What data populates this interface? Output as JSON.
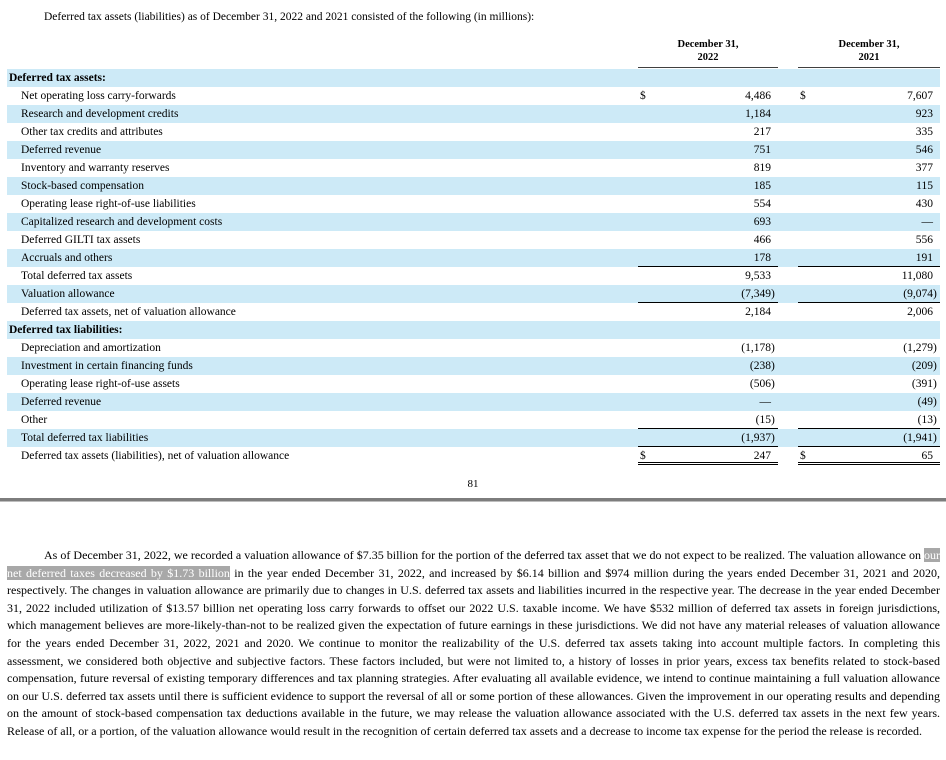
{
  "document": {
    "intro": "Deferred tax assets (liabilities) as of December 31, 2022 and 2021 consisted of the following (in millions):",
    "page_number": "81"
  },
  "colors": {
    "row_shade": "#cdeaf7",
    "highlight_bg": "#a8a8a8",
    "highlight_text": "#ffffff",
    "divider": "#7d7d7d"
  },
  "table": {
    "columns": [
      {
        "line1": "December 31,",
        "line2": "2022"
      },
      {
        "line1": "December 31,",
        "line2": "2021"
      }
    ],
    "rows": [
      {
        "label": "Deferred tax assets:",
        "section": true,
        "shade": true,
        "underline": "none",
        "cells": null
      },
      {
        "label": "Net operating loss carry-forwards",
        "section": false,
        "shade": false,
        "underline": "none",
        "cells": [
          {
            "dollar": "$",
            "num": "4,486",
            "paren": ""
          },
          {
            "dollar": "$",
            "num": "7,607",
            "paren": ""
          }
        ]
      },
      {
        "label": "Research and development credits",
        "section": false,
        "shade": true,
        "underline": "none",
        "cells": [
          {
            "dollar": "",
            "num": "1,184",
            "paren": ""
          },
          {
            "dollar": "",
            "num": "923",
            "paren": ""
          }
        ]
      },
      {
        "label": "Other tax credits and attributes",
        "section": false,
        "shade": false,
        "underline": "none",
        "cells": [
          {
            "dollar": "",
            "num": "217",
            "paren": ""
          },
          {
            "dollar": "",
            "num": "335",
            "paren": ""
          }
        ]
      },
      {
        "label": "Deferred revenue",
        "section": false,
        "shade": true,
        "underline": "none",
        "cells": [
          {
            "dollar": "",
            "num": "751",
            "paren": ""
          },
          {
            "dollar": "",
            "num": "546",
            "paren": ""
          }
        ]
      },
      {
        "label": "Inventory and warranty reserves",
        "section": false,
        "shade": false,
        "underline": "none",
        "cells": [
          {
            "dollar": "",
            "num": "819",
            "paren": ""
          },
          {
            "dollar": "",
            "num": "377",
            "paren": ""
          }
        ]
      },
      {
        "label": "Stock-based compensation",
        "section": false,
        "shade": true,
        "underline": "none",
        "cells": [
          {
            "dollar": "",
            "num": "185",
            "paren": ""
          },
          {
            "dollar": "",
            "num": "115",
            "paren": ""
          }
        ]
      },
      {
        "label": "Operating lease right-of-use liabilities",
        "section": false,
        "shade": false,
        "underline": "none",
        "cells": [
          {
            "dollar": "",
            "num": "554",
            "paren": ""
          },
          {
            "dollar": "",
            "num": "430",
            "paren": ""
          }
        ]
      },
      {
        "label": "Capitalized research and development costs",
        "section": false,
        "shade": true,
        "underline": "none",
        "cells": [
          {
            "dollar": "",
            "num": "693",
            "paren": ""
          },
          {
            "dollar": "",
            "num": "—",
            "paren": ""
          }
        ]
      },
      {
        "label": "Deferred GILTI tax assets",
        "section": false,
        "shade": false,
        "underline": "none",
        "cells": [
          {
            "dollar": "",
            "num": "466",
            "paren": ""
          },
          {
            "dollar": "",
            "num": "556",
            "paren": ""
          }
        ]
      },
      {
        "label": "Accruals and others",
        "section": false,
        "shade": true,
        "underline": "single",
        "cells": [
          {
            "dollar": "",
            "num": "178",
            "paren": ""
          },
          {
            "dollar": "",
            "num": "191",
            "paren": ""
          }
        ]
      },
      {
        "label": "Total deferred tax assets",
        "section": false,
        "shade": false,
        "underline": "none",
        "cells": [
          {
            "dollar": "",
            "num": "9,533",
            "paren": ""
          },
          {
            "dollar": "",
            "num": "11,080",
            "paren": ""
          }
        ]
      },
      {
        "label": "Valuation allowance",
        "section": false,
        "shade": true,
        "underline": "single",
        "cells": [
          {
            "dollar": "",
            "num": "(7,349",
            "paren": ")"
          },
          {
            "dollar": "",
            "num": "(9,074",
            "paren": ")"
          }
        ]
      },
      {
        "label": "Deferred tax assets, net of valuation allowance",
        "section": false,
        "shade": false,
        "underline": "none",
        "cells": [
          {
            "dollar": "",
            "num": "2,184",
            "paren": ""
          },
          {
            "dollar": "",
            "num": "2,006",
            "paren": ""
          }
        ]
      },
      {
        "label": "Deferred tax liabilities:",
        "section": true,
        "shade": true,
        "underline": "none",
        "cells": null
      },
      {
        "label": "Depreciation and amortization",
        "section": false,
        "shade": false,
        "underline": "none",
        "cells": [
          {
            "dollar": "",
            "num": "(1,178",
            "paren": ")"
          },
          {
            "dollar": "",
            "num": "(1,279",
            "paren": ")"
          }
        ]
      },
      {
        "label": "Investment in certain financing funds",
        "section": false,
        "shade": true,
        "underline": "none",
        "cells": [
          {
            "dollar": "",
            "num": "(238",
            "paren": ")"
          },
          {
            "dollar": "",
            "num": "(209",
            "paren": ")"
          }
        ]
      },
      {
        "label": "Operating lease right-of-use assets",
        "section": false,
        "shade": false,
        "underline": "none",
        "cells": [
          {
            "dollar": "",
            "num": "(506",
            "paren": ")"
          },
          {
            "dollar": "",
            "num": "(391",
            "paren": ")"
          }
        ]
      },
      {
        "label": "Deferred revenue",
        "section": false,
        "shade": true,
        "underline": "none",
        "cells": [
          {
            "dollar": "",
            "num": "—",
            "paren": ""
          },
          {
            "dollar": "",
            "num": "(49",
            "paren": ")"
          }
        ]
      },
      {
        "label": "Other",
        "section": false,
        "shade": false,
        "underline": "single",
        "cells": [
          {
            "dollar": "",
            "num": "(15",
            "paren": ")"
          },
          {
            "dollar": "",
            "num": "(13",
            "paren": ")"
          }
        ]
      },
      {
        "label": "Total deferred tax liabilities",
        "section": false,
        "shade": true,
        "underline": "single",
        "cells": [
          {
            "dollar": "",
            "num": "(1,937",
            "paren": ")"
          },
          {
            "dollar": "",
            "num": "(1,941",
            "paren": ")"
          }
        ]
      },
      {
        "label": "Deferred tax assets (liabilities), net of valuation allowance",
        "section": false,
        "shade": false,
        "underline": "double",
        "cells": [
          {
            "dollar": "$",
            "num": "247",
            "paren": ""
          },
          {
            "dollar": "$",
            "num": "65",
            "paren": ""
          }
        ]
      }
    ]
  },
  "paragraph": {
    "before": "As of December 31, 2022, we recorded a valuation allowance of $7.35 billion for the portion of the deferred tax asset that we do not expect to be realized. The valuation allowance on ",
    "highlight": "our net deferred taxes decreased by $1.73 billion",
    "after": " in the year ended December 31, 2022, and increased by $6.14 billion and $974 million during the years ended December 31, 2021 and 2020, respectively. The changes in valuation allowance are primarily due to changes in U.S. deferred tax assets and liabilities incurred in the respective year. The decrease in the year ended December 31, 2022 included utilization of $13.57 billion net operating loss carry forwards to offset our 2022 U.S. taxable income. We have $532 million of deferred tax assets in foreign jurisdictions, which management believes are more-likely-than-not to be realized given the expectation of future earnings in these jurisdictions. We did not have any material releases of valuation allowance for the years ended December 31, 2022, 2021 and 2020. We continue to monitor the realizability of the U.S. deferred tax assets taking into account multiple factors. In completing this assessment, we considered both objective and subjective factors. These factors included, but were not limited to, a history of losses in prior years, excess tax benefits related to stock-based compensation, future reversal of existing temporary differences and tax planning strategies. After evaluating all available evidence, we intend to continue maintaining a full valuation allowance on our U.S. deferred tax assets until there is sufficient evidence to support the reversal of all or some portion of these allowances. Given the improvement in our operating results and depending on the amount of stock-based compensation tax deductions available in the future, we may release the valuation allowance associated with the U.S. deferred tax assets in the next few years. Release of all, or a portion, of the valuation allowance would result in the recognition of certain deferred tax assets and a decrease to income tax expense for the period the release is recorded."
  }
}
